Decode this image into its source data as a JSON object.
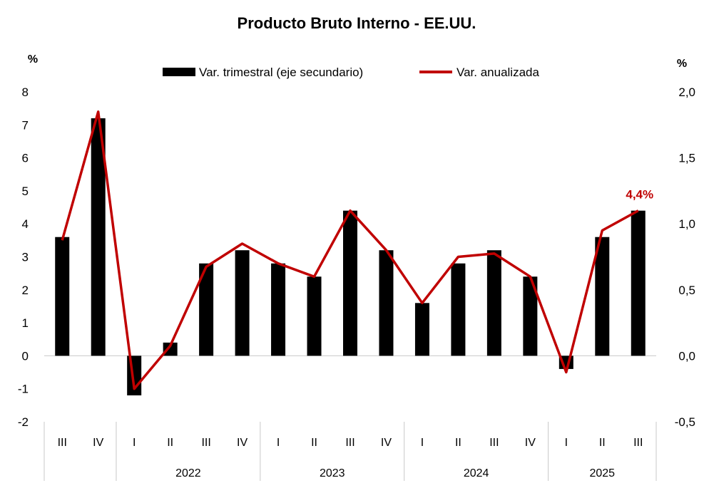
{
  "chart_data": {
    "type": "bar+line",
    "title": "Producto Bruto Interno - EE.UU.",
    "left_axis": {
      "unit": "%",
      "range": [
        -2,
        8
      ],
      "ticks": [
        "-2",
        "-1",
        "0",
        "1",
        "2",
        "3",
        "4",
        "5",
        "6",
        "7",
        "8"
      ]
    },
    "right_axis": {
      "unit": "%",
      "range": [
        -0.5,
        2.0
      ],
      "ticks": [
        "-0,5",
        "0,0",
        "0,5",
        "1,0",
        "1,5",
        "2,0"
      ]
    },
    "quarters": [
      "III",
      "IV",
      "I",
      "II",
      "III",
      "IV",
      "I",
      "II",
      "III",
      "IV",
      "I",
      "II",
      "III",
      "IV",
      "I",
      "II",
      "III"
    ],
    "years": [
      {
        "label": "2022",
        "start": 2,
        "end": 5
      },
      {
        "label": "2023",
        "start": 6,
        "end": 9
      },
      {
        "label": "2024",
        "start": 10,
        "end": 13
      },
      {
        "label": "2025",
        "start": 14,
        "end": 16
      }
    ],
    "series": [
      {
        "name": "Var. trimestral (eje secundario)",
        "type": "bar",
        "axis": "secondary",
        "values": [
          0.9,
          1.8,
          -0.3,
          0.1,
          0.7,
          0.8,
          0.7,
          0.6,
          1.1,
          0.8,
          0.4,
          0.7,
          0.8,
          0.6,
          -0.1,
          0.9,
          1.1
        ]
      },
      {
        "name": "Var. anualizada",
        "type": "line",
        "axis": "primary",
        "values": [
          3.5,
          7.4,
          -1.0,
          0.3,
          2.7,
          3.4,
          2.8,
          2.4,
          4.4,
          3.2,
          1.6,
          3.0,
          3.1,
          2.4,
          -0.5,
          3.8,
          4.4
        ]
      }
    ],
    "annotation": "4,4%",
    "colors": {
      "bar": "#000000",
      "line": "#c00000",
      "annotation": "#c00000",
      "axis": "#c8c8c8"
    }
  }
}
